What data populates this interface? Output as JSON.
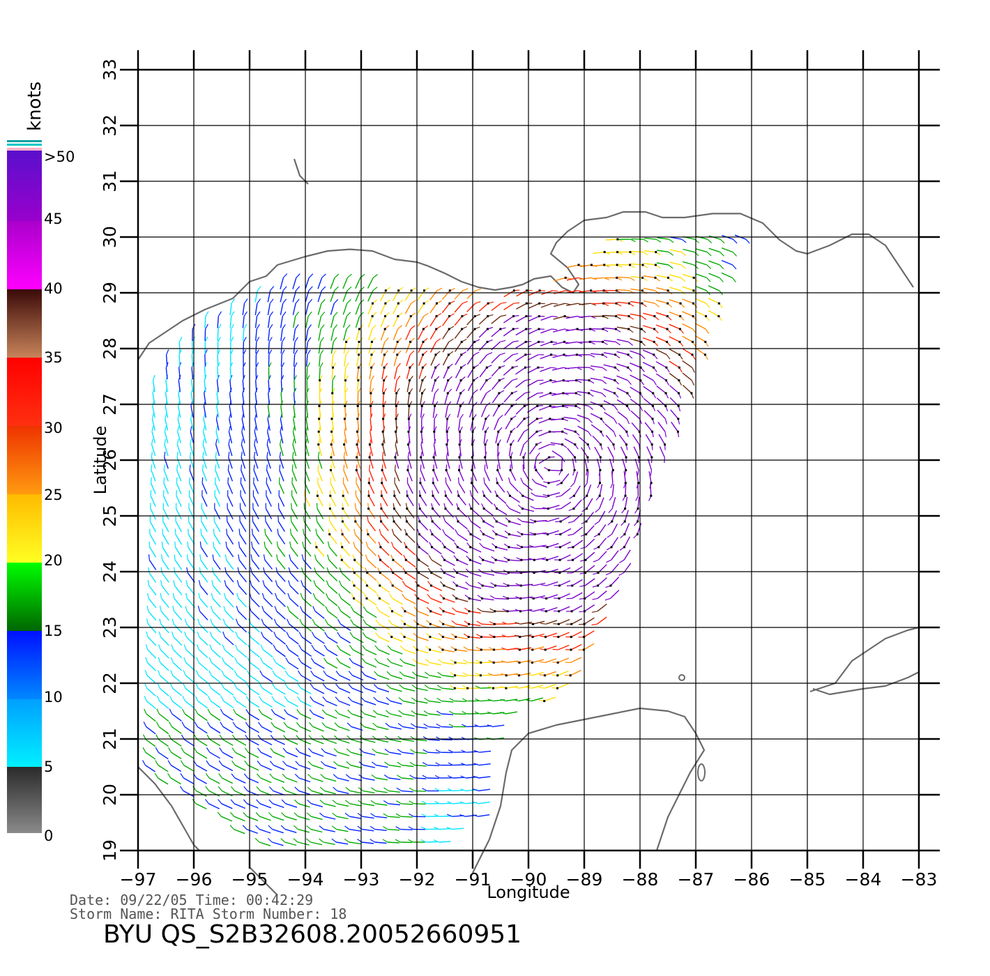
{
  "map": {
    "x_axis_title": "Longitude",
    "y_axis_title": "Latitude",
    "lon_range": [
      -97,
      -83
    ],
    "lat_range": [
      19,
      33
    ],
    "lon_ticks": [
      "−97",
      "−96",
      "−95",
      "−94",
      "−93",
      "−92",
      "−91",
      "−90",
      "−89",
      "−88",
      "−87",
      "−86",
      "−85",
      "−84",
      "−83"
    ],
    "lat_ticks": [
      "19",
      "20",
      "21",
      "22",
      "23",
      "24",
      "25",
      "26",
      "27",
      "28",
      "29",
      "30",
      "31",
      "32",
      "33"
    ],
    "grid": true,
    "coastline_color": "#6b6b6b",
    "storm_center": {
      "lon": -89.6,
      "lat": 25.9
    }
  },
  "legend": {
    "title": "knots",
    "labels": [
      ">50",
      "45",
      "40",
      "35",
      "30",
      "25",
      "20",
      "15",
      "10",
      "5",
      "0"
    ],
    "colors": {
      "gray": "#555555",
      "cyan": "#00e5ff",
      "blue": "#0022ff",
      "green": "#00aa00",
      "yellow": "#ffdd00",
      "orange": "#ff8800",
      "red": "#ff2200",
      "brown": "#6a2a10",
      "magenta": "#ff00ff",
      "purple": "#7a00cc"
    }
  },
  "footer": {
    "line1": "Date: 09/22/05   Time: 00:42:29",
    "line2": "Storm Name: RITA   Storm Number: 18",
    "file_id": "BYU QS_S2B32608.20052660951"
  }
}
